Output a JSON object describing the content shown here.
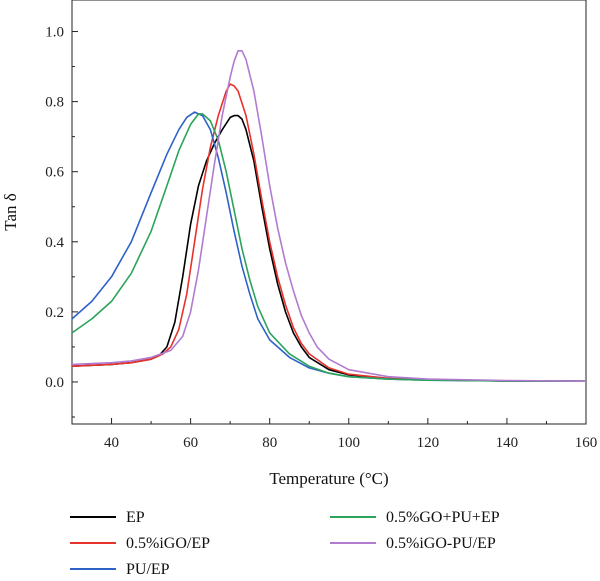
{
  "chart_data": {
    "type": "line",
    "xlabel": "Temperature (°C)",
    "ylabel": "Tan δ",
    "xlim": [
      30,
      160
    ],
    "ylim": [
      -0.12,
      1.09
    ],
    "x_ticks": [
      40,
      60,
      80,
      100,
      120,
      140,
      160
    ],
    "y_ticks": [
      "0.0",
      "0.2",
      "0.4",
      "0.6",
      "0.8",
      "1.0"
    ],
    "grid": false,
    "legend_placement": "bottom",
    "series": [
      {
        "name": "EP",
        "color": "#000000",
        "points": [
          [
            30,
            0.045
          ],
          [
            40,
            0.05
          ],
          [
            45,
            0.055
          ],
          [
            50,
            0.065
          ],
          [
            52,
            0.075
          ],
          [
            54,
            0.1
          ],
          [
            56,
            0.17
          ],
          [
            58,
            0.3
          ],
          [
            60,
            0.45
          ],
          [
            62,
            0.56
          ],
          [
            64,
            0.63
          ],
          [
            66,
            0.68
          ],
          [
            68,
            0.72
          ],
          [
            70,
            0.755
          ],
          [
            71,
            0.76
          ],
          [
            72,
            0.76
          ],
          [
            73,
            0.75
          ],
          [
            74,
            0.72
          ],
          [
            76,
            0.63
          ],
          [
            78,
            0.5
          ],
          [
            80,
            0.38
          ],
          [
            82,
            0.28
          ],
          [
            84,
            0.2
          ],
          [
            86,
            0.14
          ],
          [
            88,
            0.1
          ],
          [
            90,
            0.07
          ],
          [
            95,
            0.035
          ],
          [
            100,
            0.02
          ],
          [
            110,
            0.01
          ],
          [
            120,
            0.006
          ],
          [
            140,
            0.003
          ],
          [
            160,
            0.002
          ]
        ]
      },
      {
        "name": "0.5%iGO/EP",
        "color": "#e8322c",
        "points": [
          [
            30,
            0.045
          ],
          [
            40,
            0.05
          ],
          [
            45,
            0.055
          ],
          [
            50,
            0.065
          ],
          [
            53,
            0.08
          ],
          [
            55,
            0.1
          ],
          [
            57,
            0.15
          ],
          [
            59,
            0.25
          ],
          [
            61,
            0.4
          ],
          [
            63,
            0.55
          ],
          [
            65,
            0.67
          ],
          [
            67,
            0.76
          ],
          [
            69,
            0.83
          ],
          [
            70,
            0.85
          ],
          [
            71,
            0.845
          ],
          [
            72,
            0.83
          ],
          [
            74,
            0.76
          ],
          [
            76,
            0.65
          ],
          [
            78,
            0.52
          ],
          [
            80,
            0.4
          ],
          [
            82,
            0.3
          ],
          [
            84,
            0.22
          ],
          [
            86,
            0.155
          ],
          [
            88,
            0.11
          ],
          [
            90,
            0.08
          ],
          [
            95,
            0.04
          ],
          [
            100,
            0.022
          ],
          [
            110,
            0.01
          ],
          [
            120,
            0.006
          ],
          [
            140,
            0.003
          ],
          [
            160,
            0.002
          ]
        ]
      },
      {
        "name": "PU/EP",
        "color": "#2e62c9",
        "points": [
          [
            30,
            0.18
          ],
          [
            35,
            0.23
          ],
          [
            40,
            0.3
          ],
          [
            45,
            0.4
          ],
          [
            50,
            0.54
          ],
          [
            54,
            0.65
          ],
          [
            57,
            0.72
          ],
          [
            59,
            0.755
          ],
          [
            61,
            0.77
          ],
          [
            63,
            0.76
          ],
          [
            65,
            0.72
          ],
          [
            67,
            0.64
          ],
          [
            69,
            0.54
          ],
          [
            71,
            0.43
          ],
          [
            73,
            0.33
          ],
          [
            75,
            0.25
          ],
          [
            77,
            0.18
          ],
          [
            80,
            0.12
          ],
          [
            85,
            0.07
          ],
          [
            90,
            0.04
          ],
          [
            95,
            0.025
          ],
          [
            100,
            0.015
          ],
          [
            110,
            0.008
          ],
          [
            120,
            0.005
          ],
          [
            140,
            0.003
          ],
          [
            160,
            0.002
          ]
        ]
      },
      {
        "name": "0.5%GO+PU+EP",
        "color": "#2ca35a",
        "points": [
          [
            30,
            0.14
          ],
          [
            35,
            0.18
          ],
          [
            40,
            0.23
          ],
          [
            45,
            0.31
          ],
          [
            50,
            0.43
          ],
          [
            54,
            0.56
          ],
          [
            57,
            0.66
          ],
          [
            60,
            0.735
          ],
          [
            62,
            0.765
          ],
          [
            63,
            0.765
          ],
          [
            65,
            0.745
          ],
          [
            67,
            0.69
          ],
          [
            69,
            0.6
          ],
          [
            71,
            0.49
          ],
          [
            73,
            0.38
          ],
          [
            75,
            0.29
          ],
          [
            77,
            0.215
          ],
          [
            80,
            0.14
          ],
          [
            85,
            0.08
          ],
          [
            90,
            0.045
          ],
          [
            95,
            0.025
          ],
          [
            100,
            0.015
          ],
          [
            110,
            0.008
          ],
          [
            120,
            0.005
          ],
          [
            140,
            0.003
          ],
          [
            160,
            0.002
          ]
        ]
      },
      {
        "name": "0.5%iGO-PU/EP",
        "color": "#b27bd0",
        "points": [
          [
            30,
            0.05
          ],
          [
            40,
            0.055
          ],
          [
            45,
            0.06
          ],
          [
            50,
            0.07
          ],
          [
            55,
            0.09
          ],
          [
            58,
            0.13
          ],
          [
            60,
            0.2
          ],
          [
            62,
            0.32
          ],
          [
            64,
            0.47
          ],
          [
            66,
            0.62
          ],
          [
            68,
            0.76
          ],
          [
            70,
            0.87
          ],
          [
            71,
            0.915
          ],
          [
            72,
            0.945
          ],
          [
            73,
            0.945
          ],
          [
            74,
            0.92
          ],
          [
            76,
            0.83
          ],
          [
            78,
            0.7
          ],
          [
            80,
            0.56
          ],
          [
            82,
            0.44
          ],
          [
            84,
            0.34
          ],
          [
            86,
            0.26
          ],
          [
            88,
            0.19
          ],
          [
            90,
            0.14
          ],
          [
            92,
            0.1
          ],
          [
            95,
            0.065
          ],
          [
            100,
            0.035
          ],
          [
            110,
            0.015
          ],
          [
            120,
            0.008
          ],
          [
            140,
            0.004
          ],
          [
            160,
            0.002
          ]
        ]
      }
    ]
  }
}
